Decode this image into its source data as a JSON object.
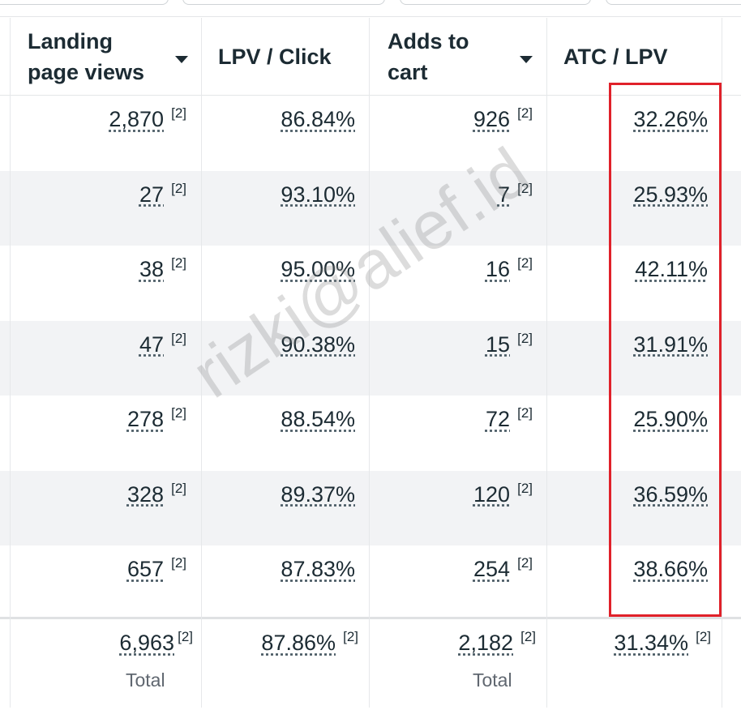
{
  "columns": [
    {
      "label": "Landing page views",
      "sortable": true
    },
    {
      "label": "LPV / Click",
      "sortable": false
    },
    {
      "label": "Adds to cart",
      "sortable": true
    },
    {
      "label": "ATC / LPV",
      "sortable": false
    }
  ],
  "footnote_marker": "[2]",
  "rows": [
    {
      "lpv": "2,870",
      "lpv_click": "86.84%",
      "atc": "926",
      "atc_lpv": "32.26%"
    },
    {
      "lpv": "27",
      "lpv_click": "93.10%",
      "atc": "7",
      "atc_lpv": "25.93%"
    },
    {
      "lpv": "38",
      "lpv_click": "95.00%",
      "atc": "16",
      "atc_lpv": "42.11%"
    },
    {
      "lpv": "47",
      "lpv_click": "90.38%",
      "atc": "15",
      "atc_lpv": "31.91%"
    },
    {
      "lpv": "278",
      "lpv_click": "88.54%",
      "atc": "72",
      "atc_lpv": "25.90%"
    },
    {
      "lpv": "328",
      "lpv_click": "89.37%",
      "atc": "120",
      "atc_lpv": "36.59%"
    },
    {
      "lpv": "657",
      "lpv_click": "87.83%",
      "atc": "254",
      "atc_lpv": "38.66%"
    }
  ],
  "totals": {
    "lpv": "6,963",
    "lpv_label": "Total",
    "lpv_click": "87.86%",
    "atc": "2,182",
    "atc_label": "Total",
    "atc_lpv": "31.34%"
  },
  "watermark": "rizki@alief.id",
  "colors": {
    "highlight": "#e0212a",
    "alt_row": "#f2f3f5",
    "text": "#1c2b33"
  }
}
